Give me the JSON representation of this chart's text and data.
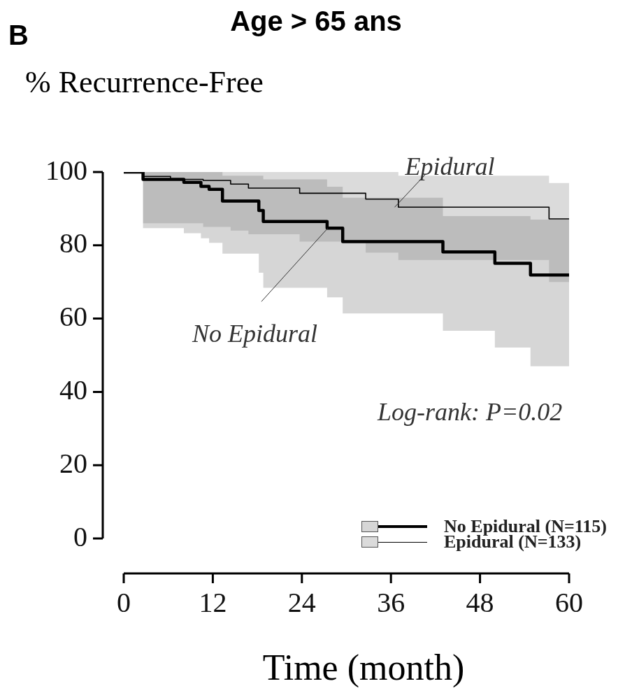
{
  "chart_data": {
    "type": "step",
    "title": "Age > 65 ans",
    "ylabel": "% Recurrence-Free",
    "xlabel": "Time (month)",
    "annotations": [
      {
        "text": "Epidural",
        "x": 36.5,
        "y": 90.4
      },
      {
        "text": "No Epidural",
        "x": 27.5,
        "y": 84.7
      },
      "Log-rank: P=0.02",
      "B"
    ],
    "xlim": [
      0,
      60
    ],
    "xticks": [
      0,
      12,
      24,
      36,
      48,
      60
    ],
    "ylim": [
      0,
      100
    ],
    "yticks": [
      0,
      20,
      40,
      60,
      80,
      100
    ],
    "grid": false,
    "legend": "bottom right",
    "marker": "none",
    "line_style": "solid",
    "series": [
      {
        "name": "No Epidural (N=115)",
        "color": "#000000",
        "x": [
          0,
          2.6,
          8.1,
          10.4,
          11.5,
          13.3,
          18.2,
          18.8,
          27.4,
          29.5,
          43,
          50,
          54.8,
          60
        ],
        "values": [
          100,
          98,
          97.2,
          96.1,
          95.3,
          92.1,
          89.5,
          86.5,
          84.7,
          81,
          78.2,
          75.1,
          71.9,
          71.9
        ],
        "lower": [
          100,
          84.7,
          83.3,
          81.9,
          80.7,
          77.7,
          72.5,
          68.4,
          65.8,
          61.4,
          56.7,
          52.1,
          47,
          47
        ],
        "upper": [
          100,
          100,
          100,
          100,
          100,
          99,
          99,
          98,
          96,
          93,
          88,
          88,
          87,
          87
        ]
      },
      {
        "name": "Epidural (N=133)",
        "color": "#000000",
        "x": [
          0,
          2.6,
          6.3,
          10.7,
          14.4,
          16.8,
          23.7,
          32.6,
          37,
          57.3,
          60
        ],
        "values": [
          100,
          98.8,
          98,
          97.7,
          96.7,
          95.6,
          94.2,
          92.6,
          90.4,
          87.2,
          87.2
        ],
        "lower": [
          100,
          86,
          86,
          85,
          84,
          83,
          81,
          78,
          76,
          70,
          65
        ],
        "upper": [
          100,
          100,
          100,
          100,
          100,
          100,
          100,
          100,
          99,
          97,
          96
        ]
      }
    ]
  }
}
